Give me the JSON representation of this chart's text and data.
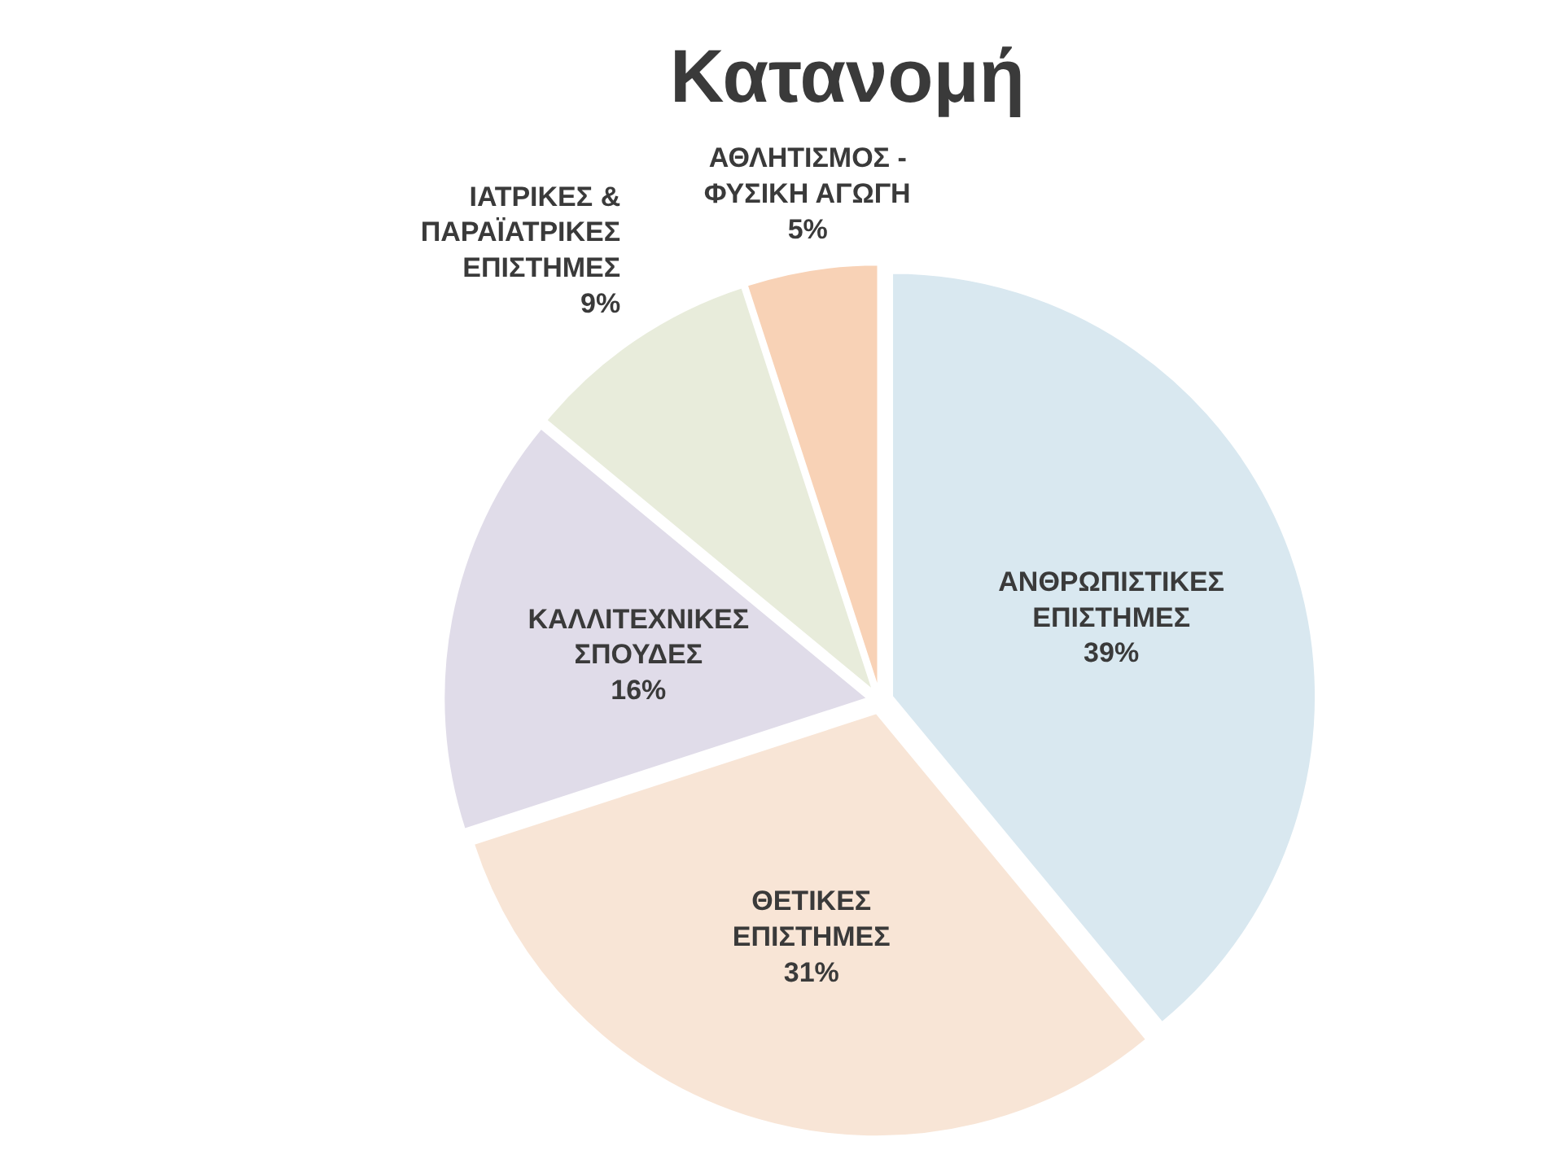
{
  "chart_data": {
    "type": "pie",
    "title": "Κατανομή",
    "categories": [
      "ΑΝΘΡΩΠΙΣΤΙΚΕΣ ΕΠΙΣΤΗΜΕΣ",
      "ΘΕΤΙΚΕΣ ΕΠΙΣΤΗΜΕΣ",
      "ΚΑΛΛΙΤΕΧΝΙΚΕΣ ΣΠΟΥΔΕΣ",
      "ΙΑΤΡΙΚΕΣ & ΠΑΡΑΪΑΤΡΙΚΕΣ ΕΠΙΣΤΗΜΕΣ",
      "ΑΘΛΗΤΙΣΜΟΣ - ΦΥΣΙΚΗ ΑΓΩΓΗ"
    ],
    "values": [
      39,
      31,
      16,
      9,
      5
    ],
    "value_labels": [
      "39%",
      "31%",
      "16%",
      "9%",
      "5%"
    ],
    "colors": [
      "#d9e8f0",
      "#f8e5d6",
      "#e0dce9",
      "#e8ecdb",
      "#f8d2b6"
    ]
  }
}
